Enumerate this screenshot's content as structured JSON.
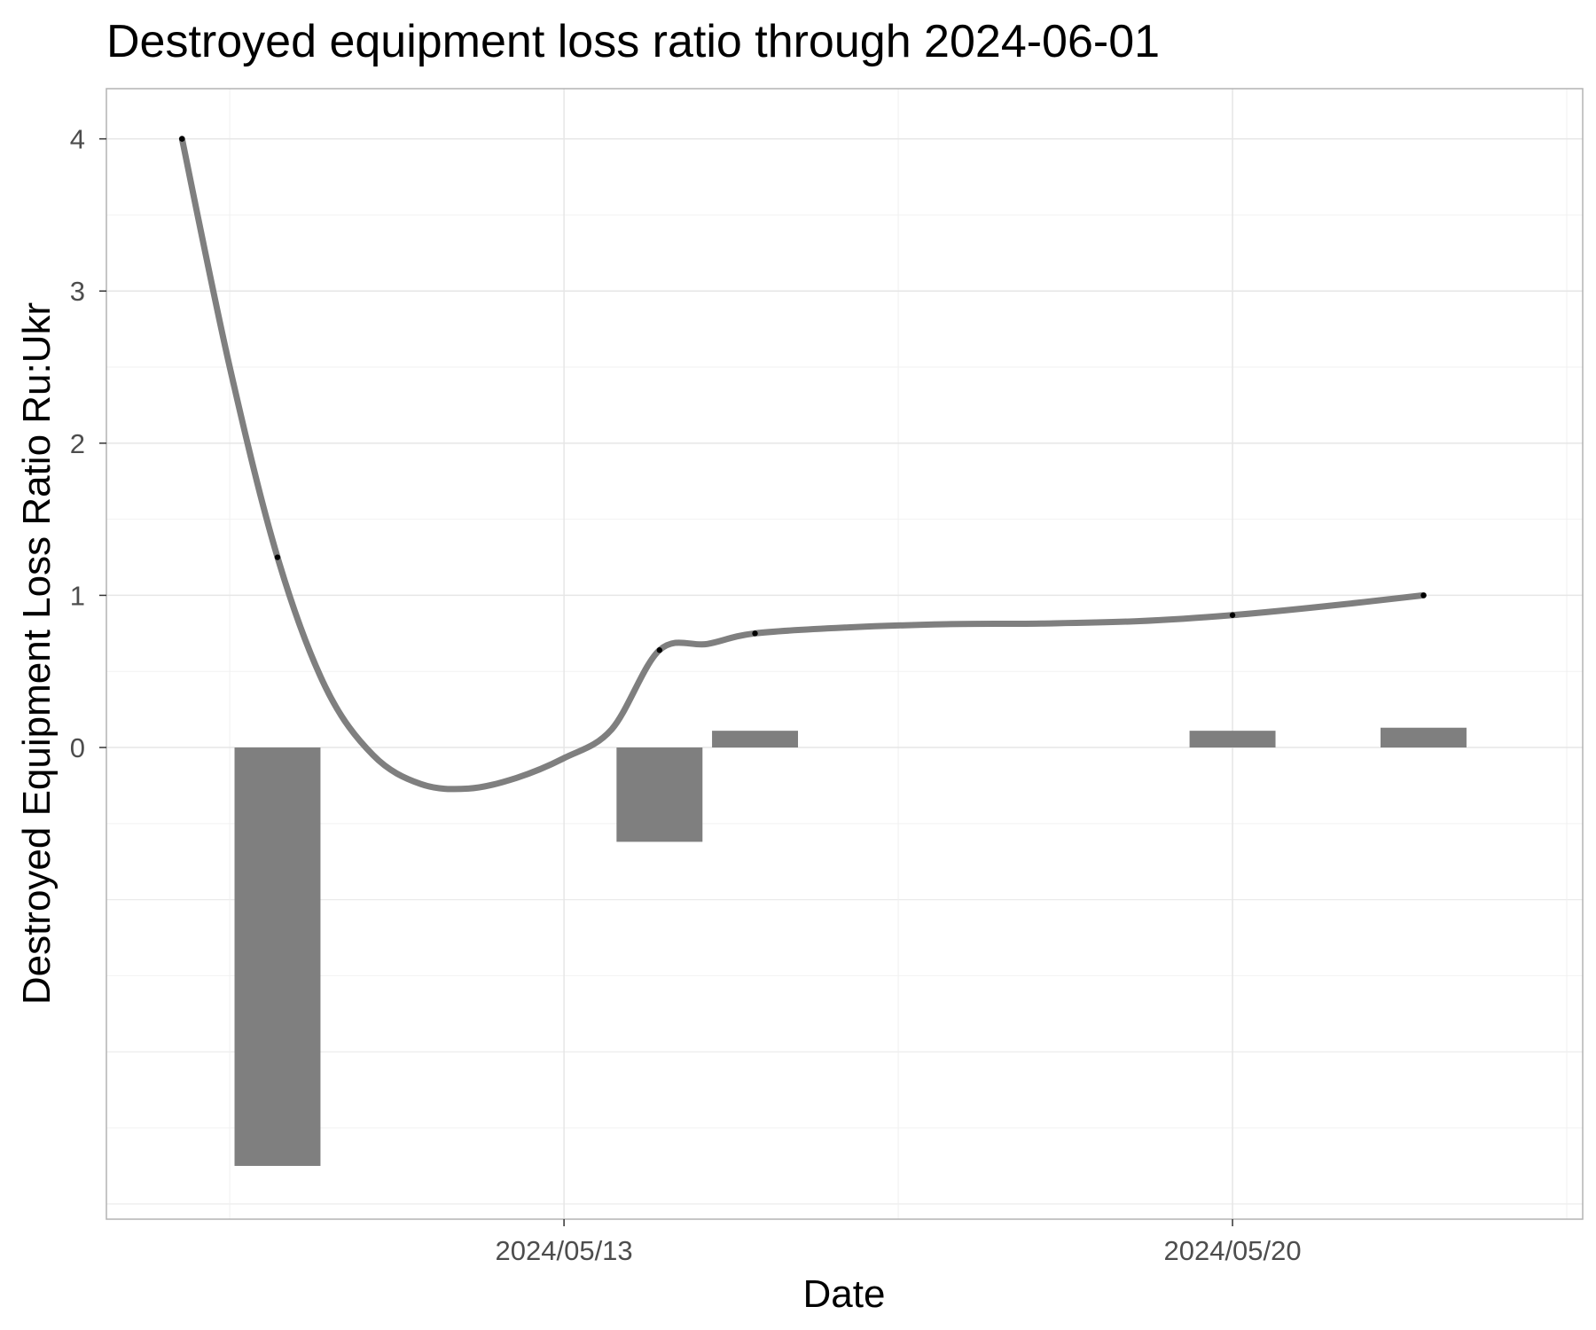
{
  "chart_data": {
    "type": "bar",
    "title": "Destroyed equipment loss ratio through 2024-06-01",
    "xlabel": "Date",
    "ylabel": "Destroyed Equipment Loss Ratio Ru:Ukr",
    "ylim": [
      -3.1,
      4.33
    ],
    "yticks": [
      0,
      1,
      2,
      3,
      4
    ],
    "xlim": [
      "2024-05-08T05:00",
      "2024-05-23T16:00"
    ],
    "xticks": [
      {
        "date": "2024-05-13",
        "label": "2024/05/13"
      },
      {
        "date": "2024-05-20",
        "label": "2024/05/20"
      }
    ],
    "grid": true,
    "bar_color": "#7f7f7f",
    "line_color": "#7f7f7f",
    "point_color": "#000000",
    "bars": [
      {
        "date": "2024-05-10",
        "value": -2.75
      },
      {
        "date": "2024-05-14",
        "value": -0.62
      },
      {
        "date": "2024-05-15",
        "value": 0.11
      },
      {
        "date": "2024-05-20",
        "value": 0.11
      },
      {
        "date": "2024-05-22",
        "value": 0.13
      }
    ],
    "points": [
      {
        "date": "2024-05-09",
        "value": 4.0
      },
      {
        "date": "2024-05-10",
        "value": 1.25
      },
      {
        "date": "2024-05-14",
        "value": 0.64
      },
      {
        "date": "2024-05-15",
        "value": 0.75
      },
      {
        "date": "2024-05-20",
        "value": 0.87
      },
      {
        "date": "2024-05-22",
        "value": 1.0
      }
    ],
    "smooth_line": [
      {
        "date": "2024-05-09T00:00",
        "value": 4.0
      },
      {
        "date": "2024-05-09T12:00",
        "value": 2.5
      },
      {
        "date": "2024-05-10T00:00",
        "value": 1.25
      },
      {
        "date": "2024-05-10T12:00",
        "value": 0.4
      },
      {
        "date": "2024-05-11T00:00",
        "value": -0.05
      },
      {
        "date": "2024-05-11T12:00",
        "value": -0.24
      },
      {
        "date": "2024-05-12T00:00",
        "value": -0.27
      },
      {
        "date": "2024-05-12T12:00",
        "value": -0.2
      },
      {
        "date": "2024-05-13T00:00",
        "value": -0.07
      },
      {
        "date": "2024-05-13T12:00",
        "value": 0.12
      },
      {
        "date": "2024-05-14T00:00",
        "value": 0.64
      },
      {
        "date": "2024-05-14T12:00",
        "value": 0.68
      },
      {
        "date": "2024-05-15T00:00",
        "value": 0.75
      },
      {
        "date": "2024-05-16T00:00",
        "value": 0.79
      },
      {
        "date": "2024-05-17T00:00",
        "value": 0.81
      },
      {
        "date": "2024-05-18T00:00",
        "value": 0.815
      },
      {
        "date": "2024-05-19T00:00",
        "value": 0.83
      },
      {
        "date": "2024-05-20T00:00",
        "value": 0.87
      },
      {
        "date": "2024-05-21T00:00",
        "value": 0.93
      },
      {
        "date": "2024-05-22T00:00",
        "value": 1.0
      }
    ]
  }
}
